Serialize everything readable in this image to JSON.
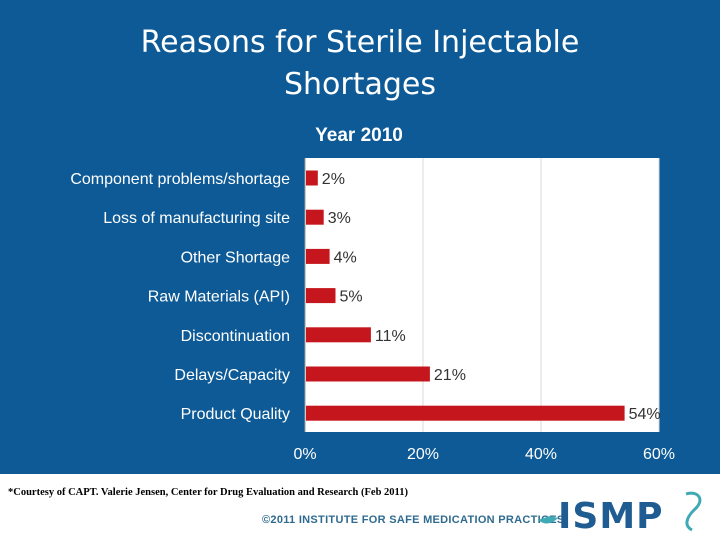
{
  "slide": {
    "title_line1": "Reasons for Sterile Injectable",
    "title_line2": "Shortages",
    "footnote": "*Courtesy of CAPT. Valerie Jensen, Center for Drug Evaluation and Research (Feb 2011)",
    "copyright": "©2011 INSTITUTE FOR SAFE MEDICATION PRACTICES",
    "logo_text": "ISMP",
    "colors": {
      "background": "#0d5a96",
      "bar": "#c4161c",
      "logo": "#1e5c91",
      "logo_accent": "#3fa9b5"
    }
  },
  "chart_data": {
    "type": "bar",
    "orientation": "horizontal",
    "title": "Year 2010",
    "categories": [
      "Component problems/shortage",
      "Loss of manufacturing site",
      "Other Shortage",
      "Raw Materials (API)",
      "Discontinuation",
      "Delays/Capacity",
      "Product Quality"
    ],
    "values": [
      2,
      3,
      4,
      5,
      11,
      21,
      54
    ],
    "value_labels": [
      "2%",
      "3%",
      "4%",
      "5%",
      "11%",
      "21%",
      "54%"
    ],
    "xlim": [
      0,
      60
    ],
    "xticks": [
      0,
      20,
      40,
      60
    ],
    "xtick_labels": [
      "0%",
      "20%",
      "40%",
      "60%"
    ],
    "xlabel": "",
    "ylabel": "",
    "grid": true
  }
}
